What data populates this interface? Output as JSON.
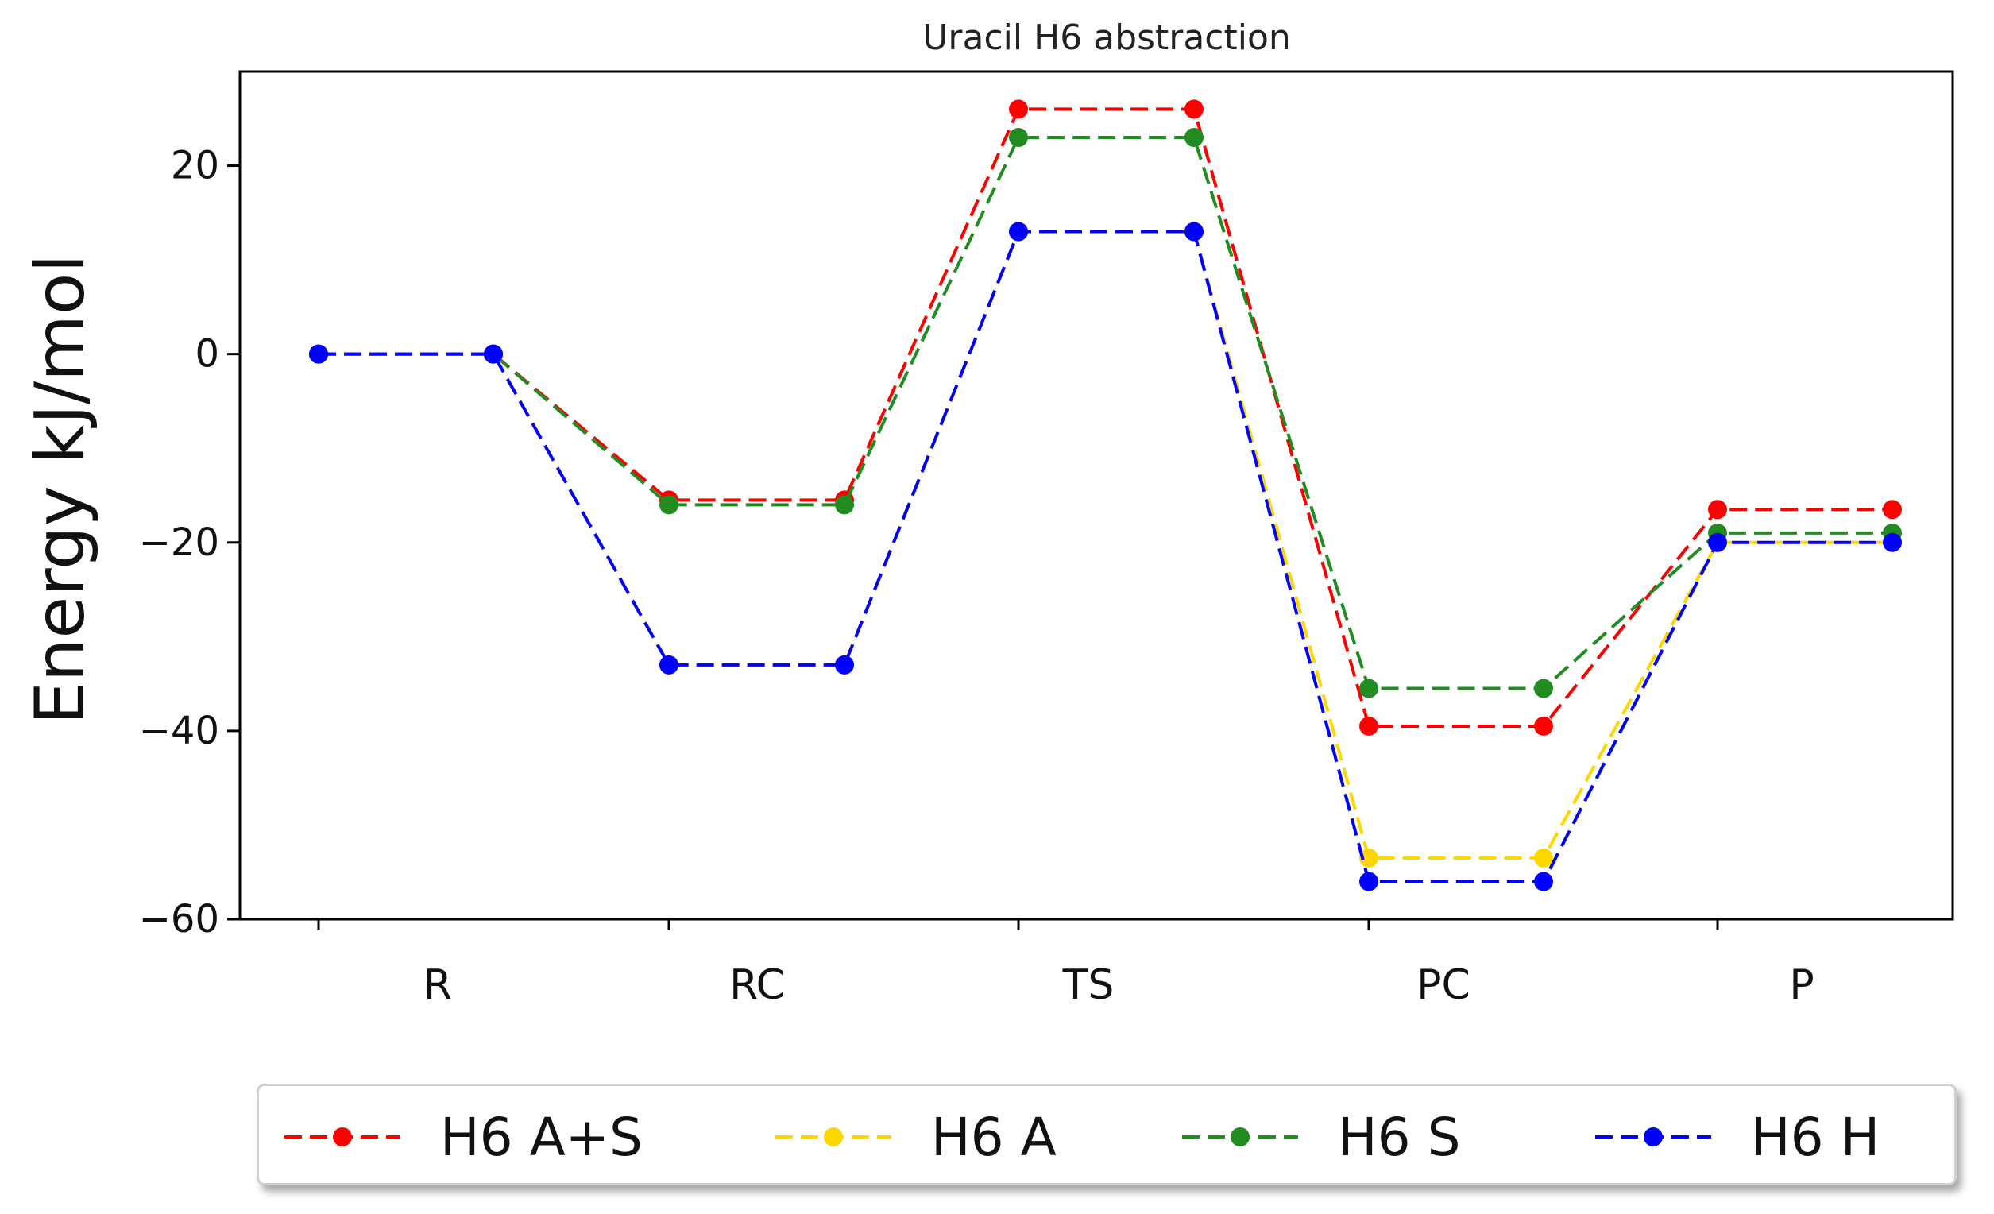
{
  "chart_data": {
    "type": "line",
    "title": "Uracil H6 abstraction",
    "xlabel": "",
    "ylabel": "Energy kJ/mol",
    "ylim": [
      -60,
      30
    ],
    "yticks": [
      20,
      0,
      -20,
      -40,
      -60
    ],
    "ytick_labels": [
      "20",
      "0",
      "−20",
      "−40",
      "−60"
    ],
    "categories": [
      "R",
      "RC",
      "TS",
      "PC",
      "P"
    ],
    "x": [
      0,
      1,
      2,
      3,
      4,
      5,
      6,
      7,
      8,
      9
    ],
    "grid": false,
    "legend_position": "bottom-outside",
    "series": [
      {
        "name": "H6 A+S",
        "color": "#ff0000",
        "values": [
          0,
          0,
          -15.5,
          -15.5,
          26,
          26,
          -39.5,
          -39.5,
          -16.5,
          -16.5
        ]
      },
      {
        "name": "H6 A",
        "color": "#ffd700",
        "values": [
          0,
          0,
          -33,
          -33,
          13,
          13,
          -53.5,
          -53.5,
          -20,
          -20
        ]
      },
      {
        "name": "H6 S",
        "color": "#228b22",
        "values": [
          0,
          0,
          -16,
          -16,
          23,
          23,
          -35.5,
          -35.5,
          -19,
          -19
        ]
      },
      {
        "name": "H6 H",
        "color": "#0000ff",
        "values": [
          0,
          0,
          -33,
          -33,
          13,
          13,
          -56,
          -56,
          -20,
          -20
        ]
      }
    ]
  }
}
